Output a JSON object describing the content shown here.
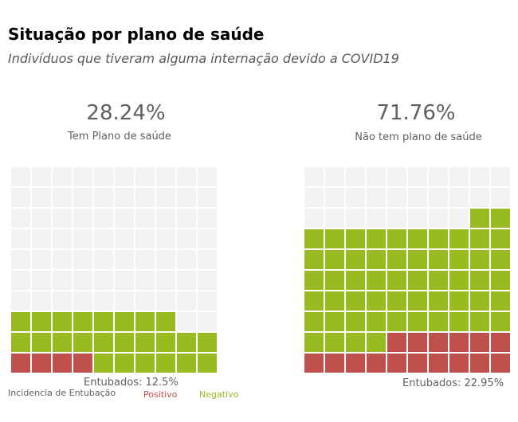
{
  "title": "Situação por plano de saúde",
  "subtitle": "Indivíduos que tiveram alguma internação devido a COVID19",
  "colors": {
    "empty": "#f2f2f2",
    "positive": "#c0504d",
    "negative": "#99bb22",
    "text": "#606060"
  },
  "legend": {
    "title": "Incidencia de Entubação",
    "positive": "Positivo",
    "negative": "Negativo"
  },
  "chart_data": [
    {
      "type": "waffle",
      "percent_label": "28.24%",
      "label": "Tem Plano de saúde",
      "entubados_label": "Entubados: 12.5%",
      "grid": [
        10,
        10
      ],
      "fill_order": "bottom-up, left-to-right",
      "values": {
        "positive": 4,
        "negative": 24,
        "empty": 72
      }
    },
    {
      "type": "waffle",
      "percent_label": "71.76%",
      "label": "Não tem plano de saúde",
      "entubados_label": "Entubados: 22.95%",
      "grid": [
        10,
        10
      ],
      "fill_order": "bottom-up, right-to-left",
      "values": {
        "positive": 16,
        "negative": 56,
        "empty": 28
      }
    }
  ]
}
